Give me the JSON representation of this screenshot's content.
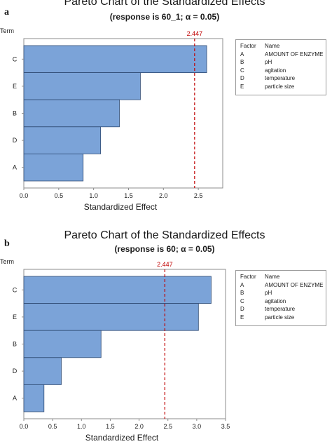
{
  "chart_data": [
    {
      "panel_label": "a",
      "type": "bar",
      "orientation": "horizontal",
      "title": "Pareto Chart of the Standardized Effects",
      "subtitle": "(response is 60_1; α = 0.05)",
      "ylabel": "Term",
      "xlabel": "Standardized Effect",
      "categories": [
        "C",
        "E",
        "B",
        "D",
        "A"
      ],
      "values": [
        2.62,
        1.67,
        1.37,
        1.1,
        0.85
      ],
      "xlim": [
        0,
        2.85
      ],
      "xticks": [
        "0.0",
        "0.5",
        "1.0",
        "1.5",
        "2.0",
        "2.5"
      ],
      "reference_line": {
        "value": 2.447,
        "label": "2.447",
        "color": "#c00000"
      },
      "bar_color": "#7ba3d8",
      "legend": {
        "headers": [
          "Factor",
          "Name"
        ],
        "rows": [
          {
            "code": "A",
            "name": "AMOUNT OF ENZYME"
          },
          {
            "code": "B",
            "name": "pH"
          },
          {
            "code": "C",
            "name": "agitation"
          },
          {
            "code": "D",
            "name": "temperature"
          },
          {
            "code": "E",
            "name": "particle size"
          }
        ]
      }
    },
    {
      "panel_label": "b",
      "type": "bar",
      "orientation": "horizontal",
      "title": "Pareto Chart of the Standardized Effects",
      "subtitle": "(response is 60; α = 0.05)",
      "ylabel": "Term",
      "xlabel": "Standardized Effect",
      "categories": [
        "C",
        "E",
        "B",
        "D",
        "A"
      ],
      "values": [
        3.25,
        3.03,
        1.34,
        0.65,
        0.35
      ],
      "xlim": [
        0,
        3.5
      ],
      "xticks": [
        "0.0",
        "0.5",
        "1.0",
        "1.5",
        "2.0",
        "2.5",
        "3.0",
        "3.5"
      ],
      "reference_line": {
        "value": 2.447,
        "label": "2.447",
        "color": "#c00000"
      },
      "bar_color": "#7ba3d8",
      "legend": {
        "headers": [
          "Factor",
          "Name"
        ],
        "rows": [
          {
            "code": "A",
            "name": "AMOUNT OF ENZYME"
          },
          {
            "code": "B",
            "name": "pH"
          },
          {
            "code": "C",
            "name": "agitation"
          },
          {
            "code": "D",
            "name": "temperature"
          },
          {
            "code": "E",
            "name": "particle size"
          }
        ]
      }
    }
  ]
}
